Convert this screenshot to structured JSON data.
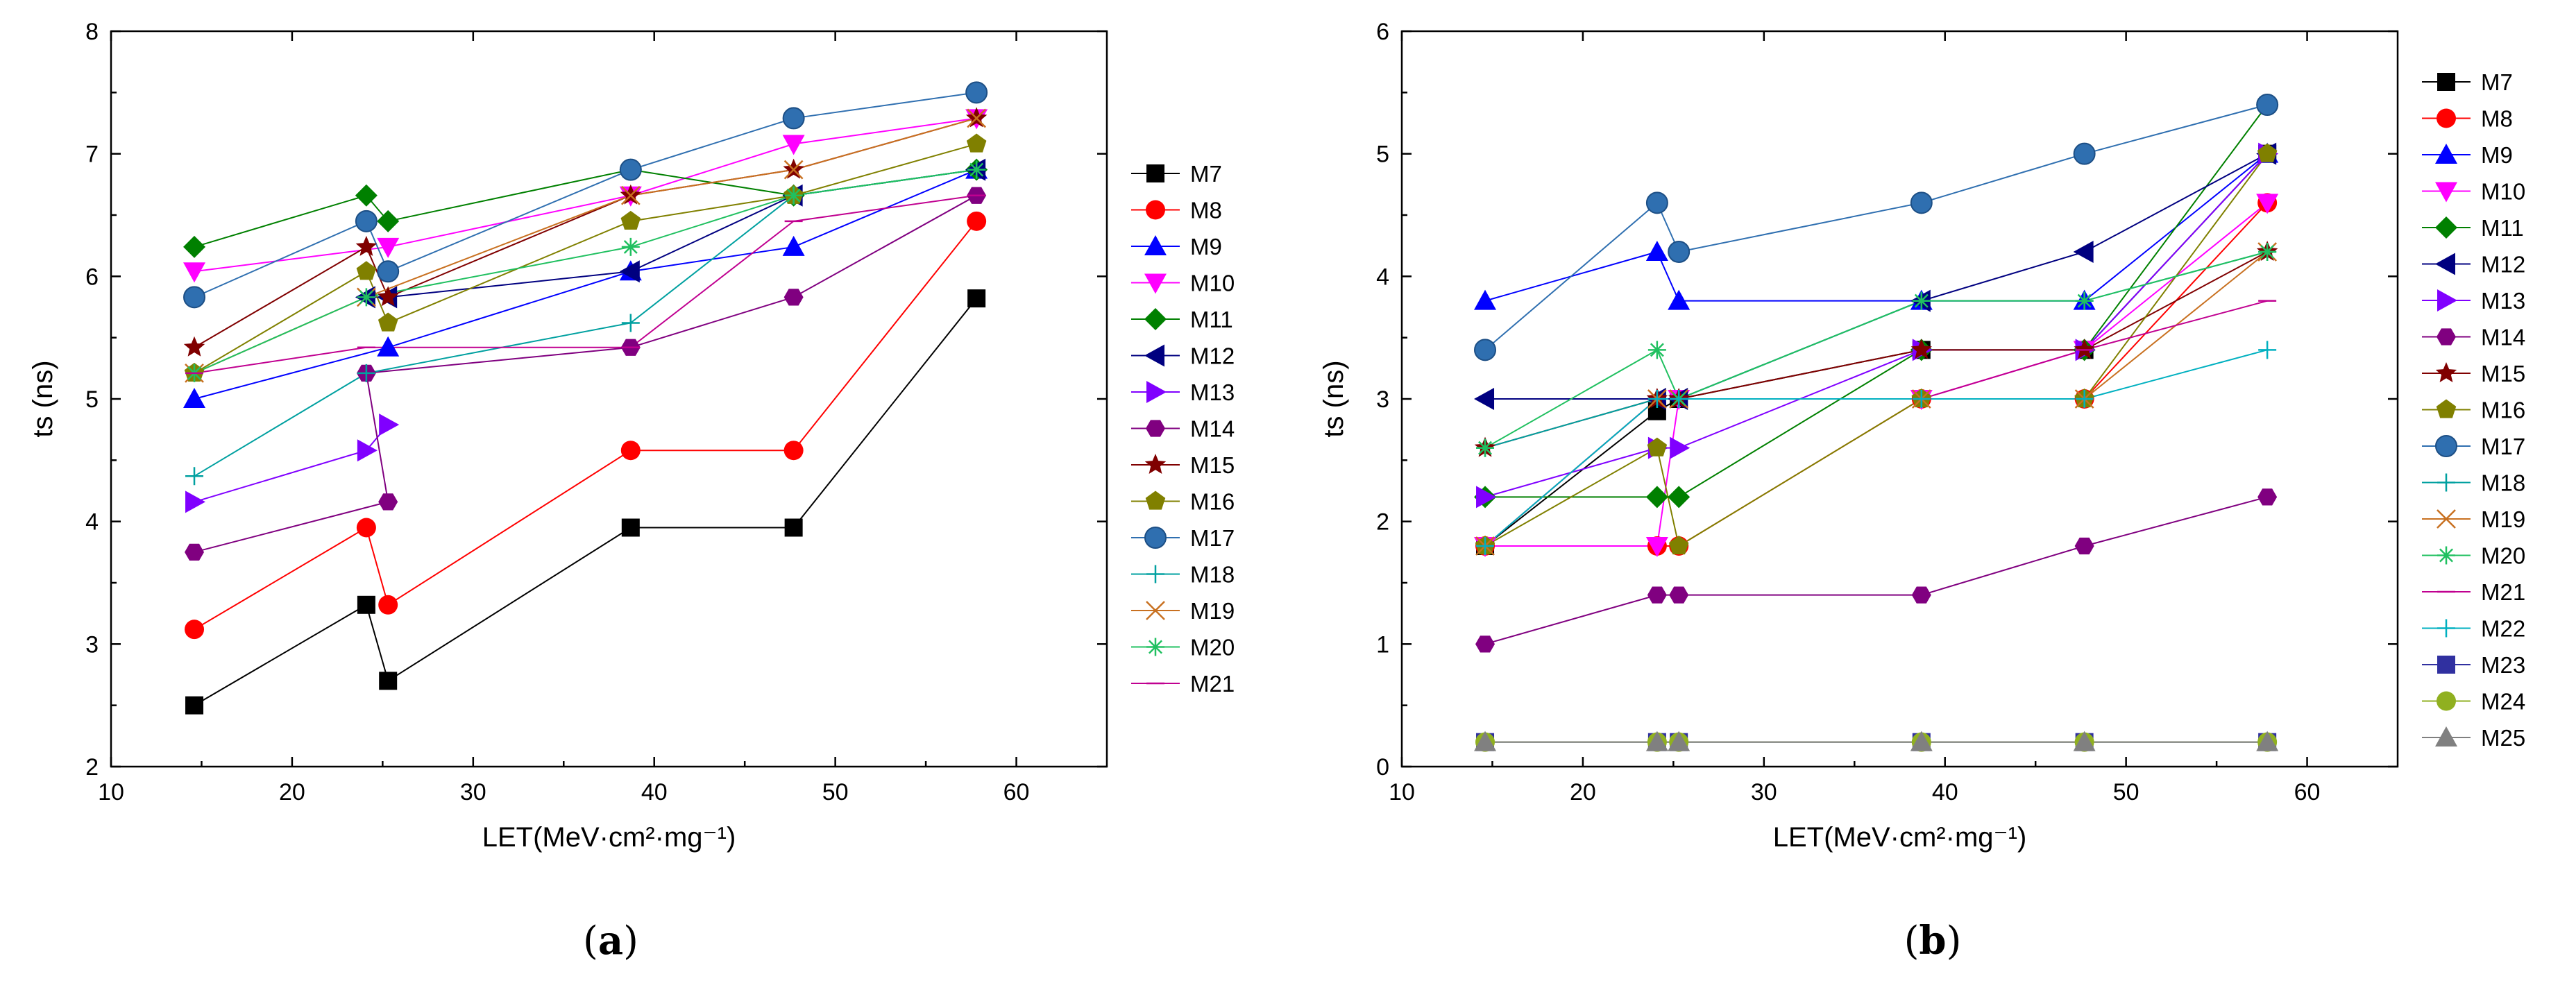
{
  "chart_data": [
    {
      "type": "line",
      "caption": "(a)",
      "xlabel": "LET(MeV·cm²·mg⁻¹)",
      "ylabel": "ts (ns)",
      "xlim": [
        10,
        65
      ],
      "ylim": [
        2,
        8
      ],
      "xticks": [
        10,
        20,
        30,
        40,
        50,
        60
      ],
      "yticks": [
        2,
        3,
        4,
        5,
        6,
        7,
        8
      ],
      "series": [
        {
          "name": "M7",
          "color": "#000000",
          "marker": "square",
          "points": [
            [
              14.6,
              2.5
            ],
            [
              24.1,
              3.32
            ],
            [
              25.3,
              2.7
            ],
            [
              38.7,
              3.95
            ],
            [
              47.7,
              3.95
            ],
            [
              57.8,
              5.82
            ]
          ]
        },
        {
          "name": "M8",
          "color": "#ff0000",
          "marker": "circle",
          "points": [
            [
              14.6,
              3.12
            ],
            [
              24.1,
              3.95
            ],
            [
              25.3,
              3.32
            ],
            [
              38.7,
              4.58
            ],
            [
              47.7,
              4.58
            ],
            [
              57.8,
              6.45
            ]
          ]
        },
        {
          "name": "M9",
          "color": "#0000ff",
          "marker": "triangle-up",
          "points": [
            [
              14.6,
              5.0
            ],
            [
              25.3,
              5.42
            ],
            [
              38.7,
              6.04
            ],
            [
              47.7,
              6.24
            ],
            [
              57.8,
              6.87
            ]
          ]
        },
        {
          "name": "M10",
          "color": "#ff00ff",
          "marker": "triangle-down",
          "points": [
            [
              14.6,
              6.04
            ],
            [
              25.3,
              6.24
            ],
            [
              38.7,
              6.66
            ],
            [
              47.7,
              7.08
            ],
            [
              57.8,
              7.29
            ]
          ]
        },
        {
          "name": "M11",
          "color": "#008000",
          "marker": "diamond",
          "points": [
            [
              14.6,
              6.24
            ],
            [
              24.1,
              6.66
            ],
            [
              25.3,
              6.45
            ],
            [
              38.7,
              6.87
            ],
            [
              47.7,
              6.66
            ],
            [
              57.8,
              6.87
            ]
          ]
        },
        {
          "name": "M12",
          "color": "#000080",
          "marker": "triangle-left",
          "points": [
            [
              24.1,
              5.83
            ],
            [
              25.3,
              5.83
            ],
            [
              38.7,
              6.04
            ],
            [
              47.7,
              6.66
            ],
            [
              57.8,
              6.87
            ]
          ]
        },
        {
          "name": "M13",
          "color": "#8000ff",
          "marker": "triangle-right",
          "points": [
            [
              14.6,
              4.16
            ],
            [
              24.1,
              4.58
            ],
            [
              25.3,
              4.79
            ]
          ]
        },
        {
          "name": "M14",
          "color": "#800080",
          "marker": "hexagon",
          "points": [
            [
              14.6,
              3.75
            ],
            [
              25.3,
              4.16
            ],
            [
              24.1,
              5.21
            ],
            [
              38.7,
              5.42
            ],
            [
              47.7,
              5.83
            ],
            [
              57.8,
              6.66
            ]
          ]
        },
        {
          "name": "M15",
          "color": "#800000",
          "marker": "star",
          "points": [
            [
              14.6,
              5.42
            ],
            [
              24.1,
              6.24
            ],
            [
              25.3,
              5.83
            ],
            [
              38.7,
              6.66
            ],
            [
              47.7,
              6.87
            ],
            [
              57.8,
              7.29
            ]
          ]
        },
        {
          "name": "M16",
          "color": "#808000",
          "marker": "pentagon",
          "points": [
            [
              14.6,
              5.21
            ],
            [
              24.1,
              6.04
            ],
            [
              25.3,
              5.62
            ],
            [
              38.7,
              6.45
            ],
            [
              47.7,
              6.66
            ],
            [
              57.8,
              7.08
            ]
          ]
        },
        {
          "name": "M17",
          "color": "#2f6fb0",
          "marker": "sphere",
          "points": [
            [
              14.6,
              5.83
            ],
            [
              24.1,
              6.45
            ],
            [
              25.3,
              6.04
            ],
            [
              38.7,
              6.87
            ],
            [
              47.7,
              7.29
            ],
            [
              57.8,
              7.5
            ]
          ]
        },
        {
          "name": "M18",
          "color": "#00a0a0",
          "marker": "plus",
          "points": [
            [
              14.6,
              4.37
            ],
            [
              24.1,
              5.21
            ],
            [
              38.7,
              5.62
            ],
            [
              47.7,
              6.66
            ],
            [
              57.8,
              6.87
            ]
          ]
        },
        {
          "name": "M19",
          "color": "#c87020",
          "marker": "x",
          "points": [
            [
              14.6,
              5.21
            ],
            [
              24.1,
              5.83
            ],
            [
              38.7,
              6.66
            ],
            [
              47.7,
              6.87
            ],
            [
              57.8,
              7.29
            ]
          ]
        },
        {
          "name": "M20",
          "color": "#20c060",
          "marker": "asterisk",
          "points": [
            [
              14.6,
              5.21
            ],
            [
              24.1,
              5.83
            ],
            [
              38.7,
              6.24
            ],
            [
              47.7,
              6.66
            ],
            [
              57.8,
              6.87
            ]
          ]
        },
        {
          "name": "M21",
          "color": "#c00090",
          "marker": "dash",
          "points": [
            [
              14.6,
              5.21
            ],
            [
              24.1,
              5.42
            ],
            [
              38.7,
              5.42
            ],
            [
              47.7,
              6.45
            ],
            [
              57.8,
              6.66
            ]
          ]
        }
      ],
      "legend": [
        "M7",
        "M8",
        "M9",
        "M10",
        "M11",
        "M12",
        "M13",
        "M14",
        "M15",
        "M16",
        "M17",
        "M18",
        "M19",
        "M20",
        "M21"
      ]
    },
    {
      "type": "line",
      "caption": "(b)",
      "xlabel": "LET(MeV·cm²·mg⁻¹)",
      "ylabel": "ts (ns)",
      "xlim": [
        10,
        65
      ],
      "ylim": [
        0,
        6
      ],
      "xticks": [
        10,
        20,
        30,
        40,
        50,
        60
      ],
      "yticks": [
        0,
        1,
        2,
        3,
        4,
        5,
        6
      ],
      "series": [
        {
          "name": "M7",
          "color": "#000000",
          "marker": "square",
          "points": [
            [
              14.6,
              1.8
            ],
            [
              24.1,
              2.9
            ],
            [
              25.3,
              3.0
            ],
            [
              38.7,
              3.4
            ],
            [
              47.7,
              3.4
            ],
            [
              57.8,
              5.0
            ]
          ]
        },
        {
          "name": "M8",
          "color": "#ff0000",
          "marker": "circle",
          "points": [
            [
              14.6,
              1.8
            ],
            [
              24.1,
              1.8
            ],
            [
              25.3,
              1.8
            ],
            [
              38.7,
              3.0
            ],
            [
              47.7,
              3.0
            ],
            [
              57.8,
              4.6
            ]
          ]
        },
        {
          "name": "M9",
          "color": "#0000ff",
          "marker": "triangle-up",
          "points": [
            [
              14.6,
              3.8
            ],
            [
              24.1,
              4.2
            ],
            [
              25.3,
              3.8
            ],
            [
              38.7,
              3.8
            ],
            [
              47.7,
              3.8
            ],
            [
              57.8,
              5.0
            ]
          ]
        },
        {
          "name": "M10",
          "color": "#ff00ff",
          "marker": "triangle-down",
          "points": [
            [
              14.6,
              1.8
            ],
            [
              24.1,
              1.8
            ],
            [
              25.3,
              3.0
            ],
            [
              38.7,
              3.0
            ],
            [
              47.7,
              3.4
            ],
            [
              57.8,
              4.6
            ]
          ]
        },
        {
          "name": "M11",
          "color": "#008000",
          "marker": "diamond",
          "points": [
            [
              14.6,
              2.2
            ],
            [
              24.1,
              2.2
            ],
            [
              25.3,
              2.2
            ],
            [
              38.7,
              3.4
            ],
            [
              47.7,
              3.4
            ],
            [
              57.8,
              5.4
            ]
          ]
        },
        {
          "name": "M12",
          "color": "#000080",
          "marker": "triangle-left",
          "points": [
            [
              14.6,
              3.0
            ],
            [
              24.1,
              3.0
            ],
            [
              25.3,
              3.0
            ],
            [
              38.7,
              3.8
            ],
            [
              47.7,
              4.2
            ],
            [
              57.8,
              5.0
            ]
          ]
        },
        {
          "name": "M13",
          "color": "#8000ff",
          "marker": "triangle-right",
          "points": [
            [
              14.6,
              2.2
            ],
            [
              24.1,
              2.6
            ],
            [
              25.3,
              2.6
            ],
            [
              38.7,
              3.4
            ],
            [
              47.7,
              3.4
            ],
            [
              57.8,
              5.0
            ]
          ]
        },
        {
          "name": "M14",
          "color": "#800080",
          "marker": "hexagon",
          "points": [
            [
              14.6,
              1.0
            ],
            [
              24.1,
              1.4
            ],
            [
              25.3,
              1.4
            ],
            [
              38.7,
              1.4
            ],
            [
              47.7,
              1.8
            ],
            [
              57.8,
              2.2
            ]
          ]
        },
        {
          "name": "M15",
          "color": "#800000",
          "marker": "star",
          "points": [
            [
              14.6,
              2.6
            ],
            [
              24.1,
              3.0
            ],
            [
              25.3,
              3.0
            ],
            [
              38.7,
              3.4
            ],
            [
              47.7,
              3.4
            ],
            [
              57.8,
              4.2
            ]
          ]
        },
        {
          "name": "M16",
          "color": "#808000",
          "marker": "pentagon",
          "points": [
            [
              14.6,
              1.8
            ],
            [
              24.1,
              2.6
            ],
            [
              25.3,
              1.8
            ],
            [
              38.7,
              3.0
            ],
            [
              47.7,
              3.0
            ],
            [
              57.8,
              5.0
            ]
          ]
        },
        {
          "name": "M17",
          "color": "#2f6fb0",
          "marker": "sphere",
          "points": [
            [
              14.6,
              3.4
            ],
            [
              24.1,
              4.6
            ],
            [
              25.3,
              4.2
            ],
            [
              38.7,
              4.6
            ],
            [
              47.7,
              5.0
            ],
            [
              57.8,
              5.4
            ]
          ]
        },
        {
          "name": "M18",
          "color": "#00a0a0",
          "marker": "plus",
          "points": [
            [
              14.6,
              2.6
            ],
            [
              24.1,
              3.0
            ],
            [
              25.3,
              3.0
            ],
            [
              38.7,
              3.8
            ],
            [
              47.7,
              3.8
            ],
            [
              57.8,
              4.2
            ]
          ]
        },
        {
          "name": "M19",
          "color": "#c87020",
          "marker": "x",
          "points": [
            [
              14.6,
              1.8
            ],
            [
              24.1,
              3.0
            ],
            [
              25.3,
              3.0
            ],
            [
              38.7,
              3.0
            ],
            [
              47.7,
              3.0
            ],
            [
              57.8,
              4.2
            ]
          ]
        },
        {
          "name": "M20",
          "color": "#20c060",
          "marker": "asterisk",
          "points": [
            [
              14.6,
              2.6
            ],
            [
              24.1,
              3.4
            ],
            [
              25.3,
              3.0
            ],
            [
              38.7,
              3.8
            ],
            [
              47.7,
              3.8
            ],
            [
              57.8,
              4.2
            ]
          ]
        },
        {
          "name": "M21",
          "color": "#c00090",
          "marker": "dash",
          "points": [
            [
              14.6,
              1.8
            ],
            [
              24.1,
              3.0
            ],
            [
              25.3,
              3.0
            ],
            [
              38.7,
              3.0
            ],
            [
              47.7,
              3.4
            ],
            [
              57.8,
              3.8
            ]
          ]
        },
        {
          "name": "M22",
          "color": "#00b0c0",
          "marker": "plus",
          "points": [
            [
              14.6,
              1.8
            ],
            [
              24.1,
              3.0
            ],
            [
              25.3,
              3.0
            ],
            [
              38.7,
              3.0
            ],
            [
              47.7,
              3.0
            ],
            [
              57.8,
              3.4
            ]
          ]
        },
        {
          "name": "M23",
          "color": "#3030a0",
          "marker": "square",
          "points": [
            [
              14.6,
              0.2
            ],
            [
              24.1,
              0.2
            ],
            [
              25.3,
              0.2
            ],
            [
              38.7,
              0.2
            ],
            [
              47.7,
              0.2
            ],
            [
              57.8,
              0.2
            ]
          ]
        },
        {
          "name": "M24",
          "color": "#90b020",
          "marker": "circle",
          "points": [
            [
              14.6,
              0.2
            ],
            [
              24.1,
              0.2
            ],
            [
              25.3,
              0.2
            ],
            [
              38.7,
              0.2
            ],
            [
              47.7,
              0.2
            ],
            [
              57.8,
              0.2
            ]
          ]
        },
        {
          "name": "M25",
          "color": "#808080",
          "marker": "triangle-up",
          "points": [
            [
              14.6,
              0.2
            ],
            [
              24.1,
              0.2
            ],
            [
              25.3,
              0.2
            ],
            [
              38.7,
              0.2
            ],
            [
              47.7,
              0.2
            ],
            [
              57.8,
              0.2
            ]
          ]
        }
      ],
      "legend": [
        "M7",
        "M8",
        "M9",
        "M10",
        "M11",
        "M12",
        "M13",
        "M14",
        "M15",
        "M16",
        "M17",
        "M18",
        "M19",
        "M20",
        "M21",
        "M22",
        "M23",
        "M24",
        "M25"
      ]
    }
  ]
}
